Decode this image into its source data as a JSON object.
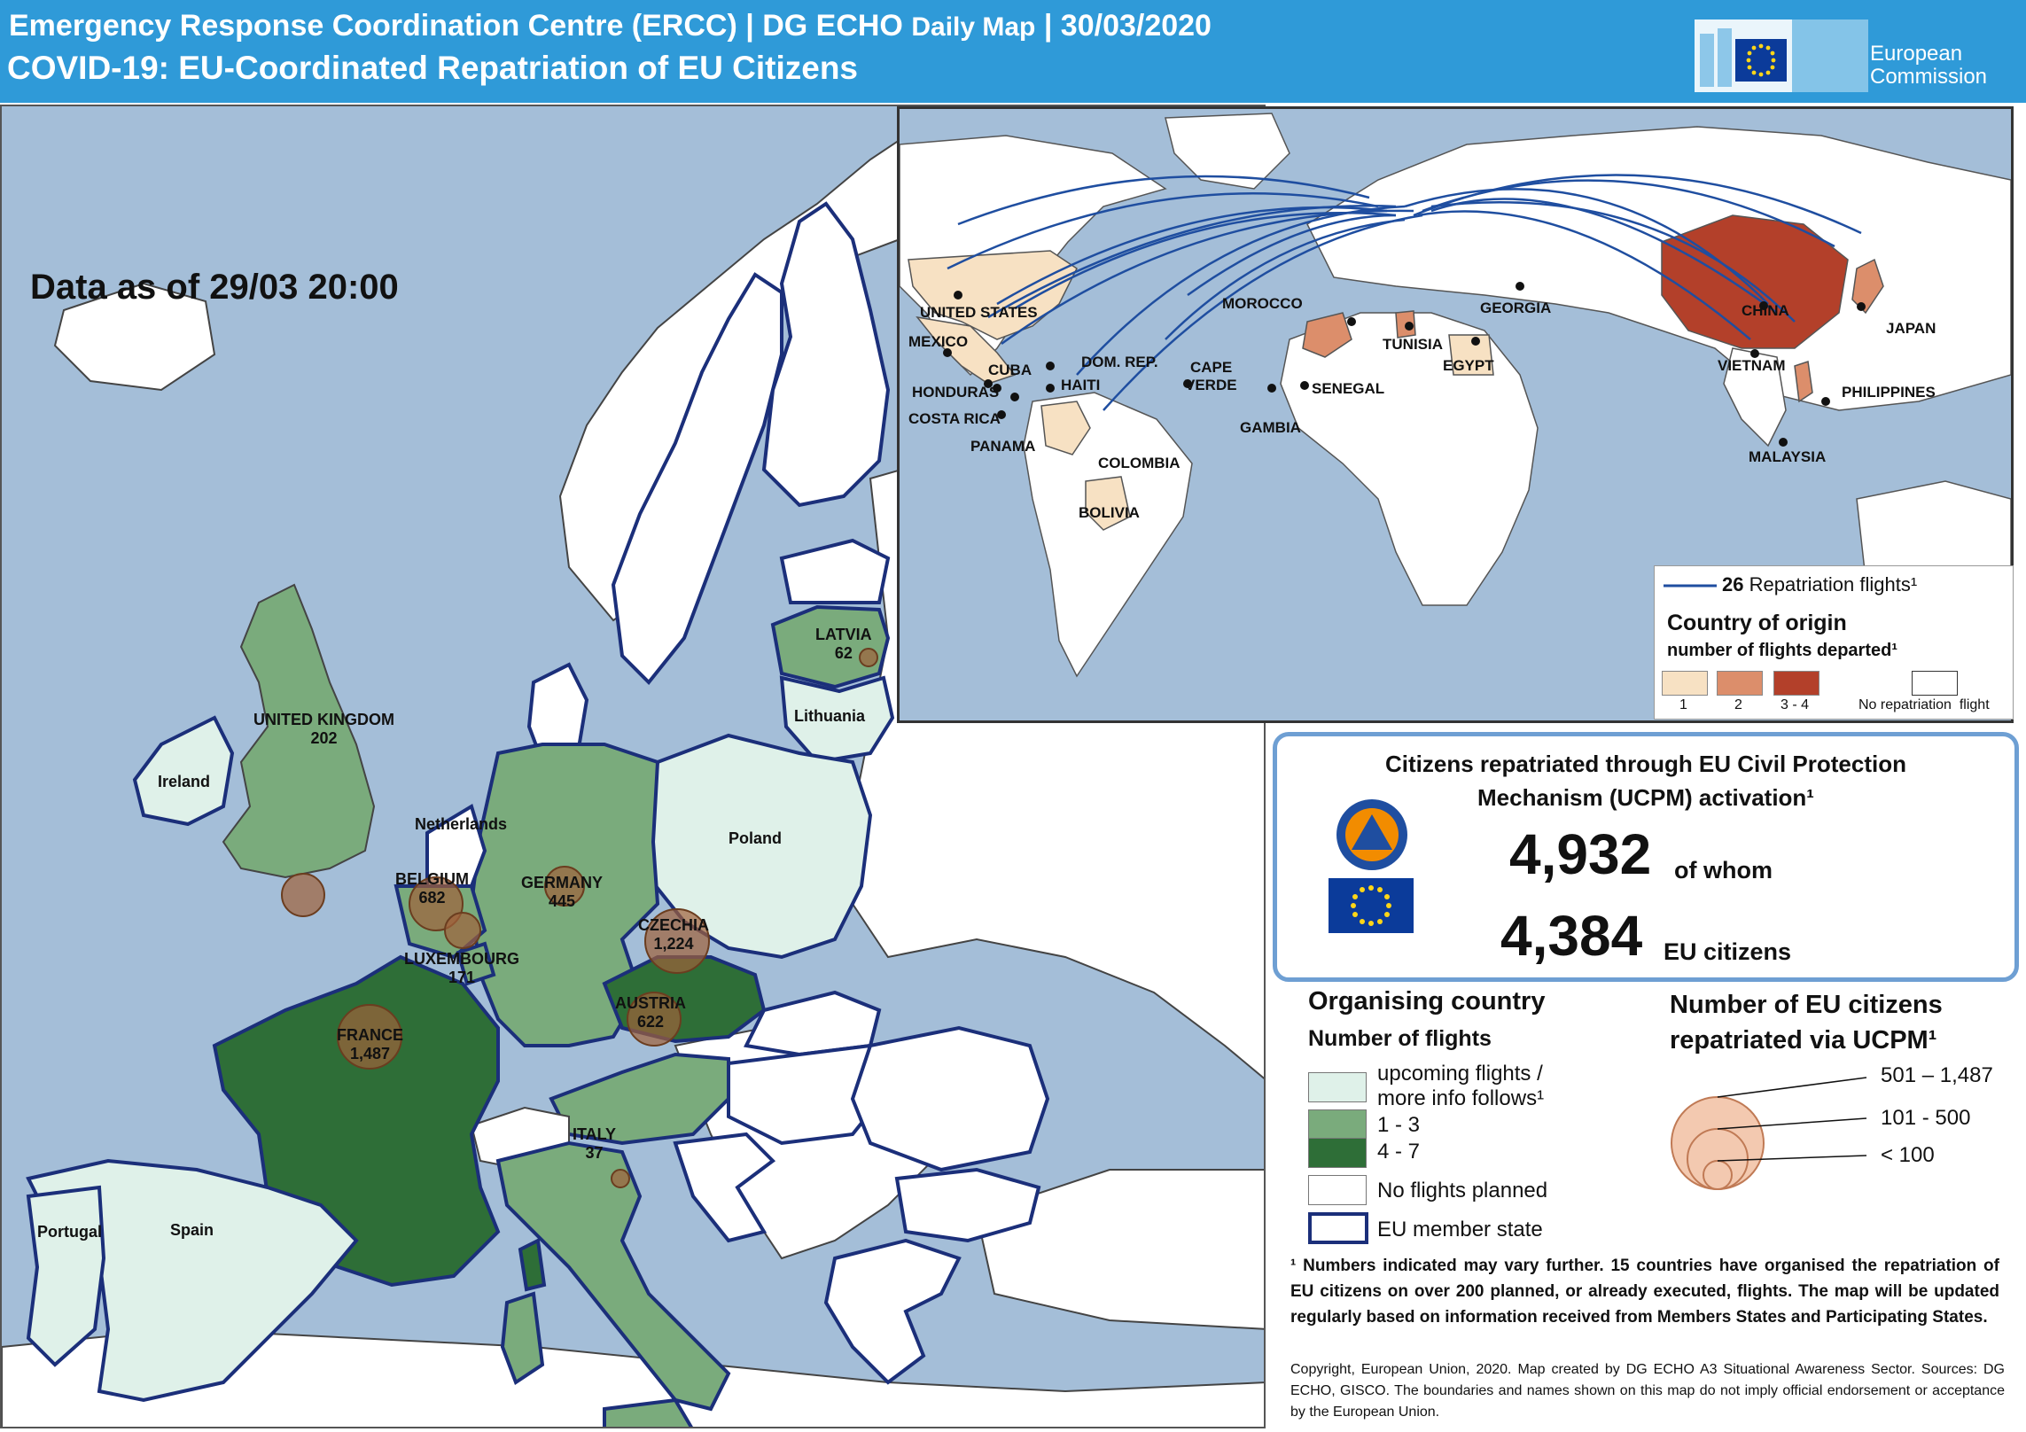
{
  "header": {
    "line1_main": "Emergency Response Coordination Centre (ERCC) | DG ECHO",
    "line1_small": "Daily Map",
    "line1_date": "| 30/03/2020",
    "line2": "COVID-19: EU-Coordinated Repatriation of EU Citizens",
    "logo_text_1": "European",
    "logo_text_2": "Commission"
  },
  "data_as_of": "Data as of 29/03 20:00",
  "colors": {
    "sea": "#a4bed8",
    "land_nonEU": "#ffffff",
    "upcoming": "#dff1e9",
    "flights_1_3": "#7aab7c",
    "flights_4_7": "#2e6e37",
    "eu_border": "#1b2f7a",
    "origin_1": "#f7e1c3",
    "origin_2": "#dc8e6b",
    "origin_3_4": "#b3402a",
    "route": "#1f4ea0",
    "bubble": "#a0613b",
    "header": "#2f9ad8"
  },
  "main_map": {
    "countries": [
      {
        "name": "UNITED KINGDOM",
        "value": "202"
      },
      {
        "name": "Ireland"
      },
      {
        "name": "Netherlands"
      },
      {
        "name": "BELGIUM",
        "value": "682"
      },
      {
        "name": "LUXEMBOURG",
        "value": "171"
      },
      {
        "name": "GERMANY",
        "value": "445"
      },
      {
        "name": "CZECHIA",
        "value": "1,224"
      },
      {
        "name": "AUSTRIA",
        "value": "622"
      },
      {
        "name": "FRANCE",
        "value": "1,487"
      },
      {
        "name": "ITALY",
        "value": "37"
      },
      {
        "name": "Poland"
      },
      {
        "name": "LATVIA",
        "value": "62"
      },
      {
        "name": "Lithuania"
      },
      {
        "name": "Spain"
      },
      {
        "name": "Portugal"
      }
    ]
  },
  "inset_map": {
    "labels": [
      "UNITED STATES",
      "MEXICO",
      "CUBA",
      "HONDURAS",
      "COSTA RICA",
      "PANAMA",
      "DOM. REP.",
      "HAITI",
      "COLOMBIA",
      "BOLIVIA",
      "CAPE",
      "VERDE",
      "GAMBIA",
      "SENEGAL",
      "MOROCCO",
      "TUNISIA",
      "EGYPT",
      "GEORGIA",
      "CHINA",
      "JAPAN",
      "VIETNAM",
      "PHILIPPINES",
      "MALAYSIA"
    ],
    "legend": {
      "flights_count": "26",
      "flights_label": "Repatriation flights¹",
      "title": "Country of origin",
      "subtitle": "number of flights departed¹",
      "classes": [
        "1",
        "2",
        "3 - 4",
        "No repatriation  flight"
      ]
    }
  },
  "panel": {
    "title": "Citizens repatriated through EU Civil Protection Mechanism (UCPM) activation¹",
    "total": "4,932",
    "total_suffix": "of whom",
    "eu": "4,384",
    "eu_suffix": "EU citizens"
  },
  "legend_left": {
    "title": "Organising country",
    "subtitle": "Number of flights",
    "items": [
      "upcoming flights /",
      "more info follows¹",
      "1 - 3",
      "4 - 7",
      "No flights planned",
      "EU member state"
    ]
  },
  "legend_right": {
    "title_1": "Number of EU citizens",
    "title_2": "repatriated via UCPM¹",
    "classes": [
      "501 – 1,487",
      "101 - 500",
      "< 100"
    ]
  },
  "footnote": "¹ Numbers indicated may vary further. 15 countries have organised the repatriation of EU citizens on over 200 planned, or already executed, flights. The map will be updated regularly based on information received from Members States and Participating States.",
  "copyright": "Copyright, European Union, 2020. Map created by DG ECHO A3 Situational Awareness Sector.  Sources: DG ECHO, GISCO. The boundaries and names shown on this map do not imply official endorsement or acceptance by the European Union."
}
